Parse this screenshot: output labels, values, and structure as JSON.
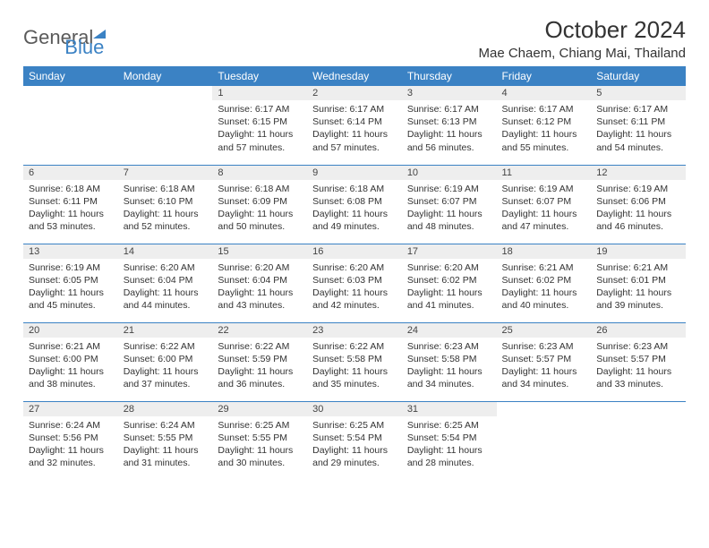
{
  "logo": {
    "general": "General",
    "blue": "Blue"
  },
  "title": "October 2024",
  "location": "Mae Chaem, Chiang Mai, Thailand",
  "colors": {
    "header_bg": "#3b82c4",
    "header_text": "#ffffff",
    "daynum_bg": "#eeeeee",
    "border": "#3b82c4",
    "text": "#333333",
    "logo_gray": "#5a5a5a",
    "logo_blue": "#3b82c4",
    "page_bg": "#ffffff"
  },
  "typography": {
    "title_fontsize": 26,
    "location_fontsize": 15,
    "dow_fontsize": 12,
    "daynum_fontsize": 11,
    "cell_fontsize": 10.5
  },
  "days_of_week": [
    "Sunday",
    "Monday",
    "Tuesday",
    "Wednesday",
    "Thursday",
    "Friday",
    "Saturday"
  ],
  "weeks": [
    [
      null,
      null,
      {
        "n": "1",
        "sunrise": "Sunrise: 6:17 AM",
        "sunset": "Sunset: 6:15 PM",
        "daylight": "Daylight: 11 hours and 57 minutes."
      },
      {
        "n": "2",
        "sunrise": "Sunrise: 6:17 AM",
        "sunset": "Sunset: 6:14 PM",
        "daylight": "Daylight: 11 hours and 57 minutes."
      },
      {
        "n": "3",
        "sunrise": "Sunrise: 6:17 AM",
        "sunset": "Sunset: 6:13 PM",
        "daylight": "Daylight: 11 hours and 56 minutes."
      },
      {
        "n": "4",
        "sunrise": "Sunrise: 6:17 AM",
        "sunset": "Sunset: 6:12 PM",
        "daylight": "Daylight: 11 hours and 55 minutes."
      },
      {
        "n": "5",
        "sunrise": "Sunrise: 6:17 AM",
        "sunset": "Sunset: 6:11 PM",
        "daylight": "Daylight: 11 hours and 54 minutes."
      }
    ],
    [
      {
        "n": "6",
        "sunrise": "Sunrise: 6:18 AM",
        "sunset": "Sunset: 6:11 PM",
        "daylight": "Daylight: 11 hours and 53 minutes."
      },
      {
        "n": "7",
        "sunrise": "Sunrise: 6:18 AM",
        "sunset": "Sunset: 6:10 PM",
        "daylight": "Daylight: 11 hours and 52 minutes."
      },
      {
        "n": "8",
        "sunrise": "Sunrise: 6:18 AM",
        "sunset": "Sunset: 6:09 PM",
        "daylight": "Daylight: 11 hours and 50 minutes."
      },
      {
        "n": "9",
        "sunrise": "Sunrise: 6:18 AM",
        "sunset": "Sunset: 6:08 PM",
        "daylight": "Daylight: 11 hours and 49 minutes."
      },
      {
        "n": "10",
        "sunrise": "Sunrise: 6:19 AM",
        "sunset": "Sunset: 6:07 PM",
        "daylight": "Daylight: 11 hours and 48 minutes."
      },
      {
        "n": "11",
        "sunrise": "Sunrise: 6:19 AM",
        "sunset": "Sunset: 6:07 PM",
        "daylight": "Daylight: 11 hours and 47 minutes."
      },
      {
        "n": "12",
        "sunrise": "Sunrise: 6:19 AM",
        "sunset": "Sunset: 6:06 PM",
        "daylight": "Daylight: 11 hours and 46 minutes."
      }
    ],
    [
      {
        "n": "13",
        "sunrise": "Sunrise: 6:19 AM",
        "sunset": "Sunset: 6:05 PM",
        "daylight": "Daylight: 11 hours and 45 minutes."
      },
      {
        "n": "14",
        "sunrise": "Sunrise: 6:20 AM",
        "sunset": "Sunset: 6:04 PM",
        "daylight": "Daylight: 11 hours and 44 minutes."
      },
      {
        "n": "15",
        "sunrise": "Sunrise: 6:20 AM",
        "sunset": "Sunset: 6:04 PM",
        "daylight": "Daylight: 11 hours and 43 minutes."
      },
      {
        "n": "16",
        "sunrise": "Sunrise: 6:20 AM",
        "sunset": "Sunset: 6:03 PM",
        "daylight": "Daylight: 11 hours and 42 minutes."
      },
      {
        "n": "17",
        "sunrise": "Sunrise: 6:20 AM",
        "sunset": "Sunset: 6:02 PM",
        "daylight": "Daylight: 11 hours and 41 minutes."
      },
      {
        "n": "18",
        "sunrise": "Sunrise: 6:21 AM",
        "sunset": "Sunset: 6:02 PM",
        "daylight": "Daylight: 11 hours and 40 minutes."
      },
      {
        "n": "19",
        "sunrise": "Sunrise: 6:21 AM",
        "sunset": "Sunset: 6:01 PM",
        "daylight": "Daylight: 11 hours and 39 minutes."
      }
    ],
    [
      {
        "n": "20",
        "sunrise": "Sunrise: 6:21 AM",
        "sunset": "Sunset: 6:00 PM",
        "daylight": "Daylight: 11 hours and 38 minutes."
      },
      {
        "n": "21",
        "sunrise": "Sunrise: 6:22 AM",
        "sunset": "Sunset: 6:00 PM",
        "daylight": "Daylight: 11 hours and 37 minutes."
      },
      {
        "n": "22",
        "sunrise": "Sunrise: 6:22 AM",
        "sunset": "Sunset: 5:59 PM",
        "daylight": "Daylight: 11 hours and 36 minutes."
      },
      {
        "n": "23",
        "sunrise": "Sunrise: 6:22 AM",
        "sunset": "Sunset: 5:58 PM",
        "daylight": "Daylight: 11 hours and 35 minutes."
      },
      {
        "n": "24",
        "sunrise": "Sunrise: 6:23 AM",
        "sunset": "Sunset: 5:58 PM",
        "daylight": "Daylight: 11 hours and 34 minutes."
      },
      {
        "n": "25",
        "sunrise": "Sunrise: 6:23 AM",
        "sunset": "Sunset: 5:57 PM",
        "daylight": "Daylight: 11 hours and 34 minutes."
      },
      {
        "n": "26",
        "sunrise": "Sunrise: 6:23 AM",
        "sunset": "Sunset: 5:57 PM",
        "daylight": "Daylight: 11 hours and 33 minutes."
      }
    ],
    [
      {
        "n": "27",
        "sunrise": "Sunrise: 6:24 AM",
        "sunset": "Sunset: 5:56 PM",
        "daylight": "Daylight: 11 hours and 32 minutes."
      },
      {
        "n": "28",
        "sunrise": "Sunrise: 6:24 AM",
        "sunset": "Sunset: 5:55 PM",
        "daylight": "Daylight: 11 hours and 31 minutes."
      },
      {
        "n": "29",
        "sunrise": "Sunrise: 6:25 AM",
        "sunset": "Sunset: 5:55 PM",
        "daylight": "Daylight: 11 hours and 30 minutes."
      },
      {
        "n": "30",
        "sunrise": "Sunrise: 6:25 AM",
        "sunset": "Sunset: 5:54 PM",
        "daylight": "Daylight: 11 hours and 29 minutes."
      },
      {
        "n": "31",
        "sunrise": "Sunrise: 6:25 AM",
        "sunset": "Sunset: 5:54 PM",
        "daylight": "Daylight: 11 hours and 28 minutes."
      },
      null,
      null
    ]
  ]
}
